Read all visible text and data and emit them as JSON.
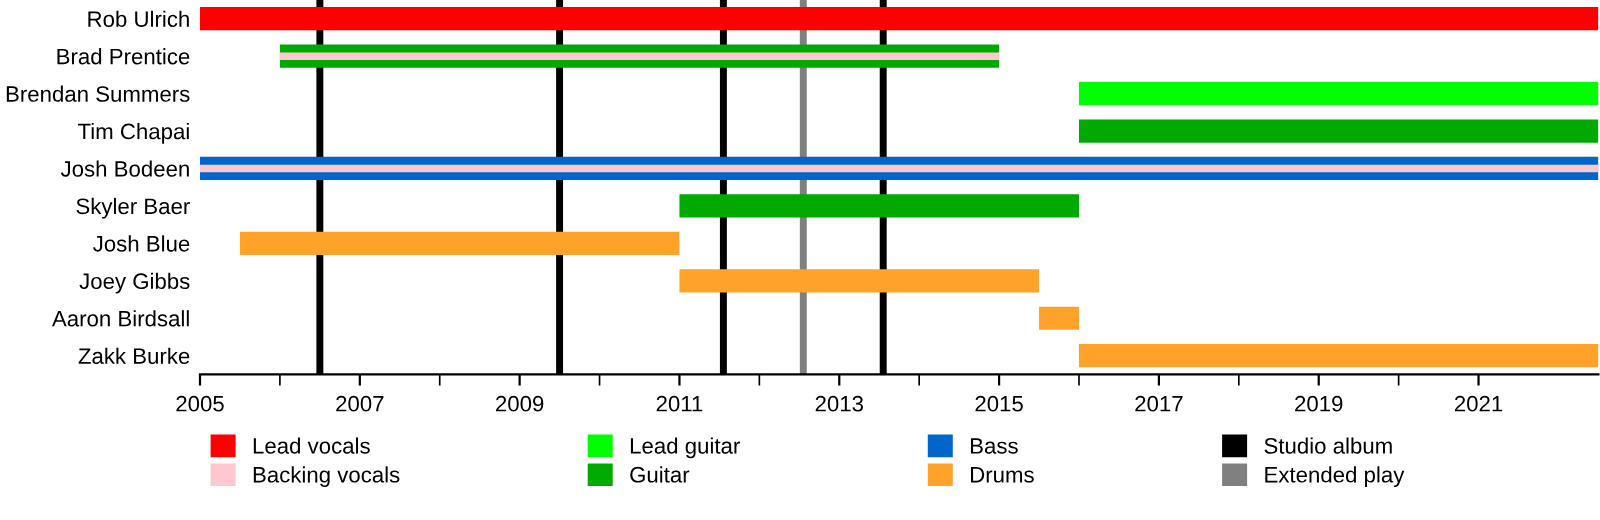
{
  "chart_data": {
    "type": "bar",
    "orientation": "horizontal",
    "categories": [
      "Rob Ulrich",
      "Brad Prentice",
      "Brendan Summers",
      "Tim Chapai",
      "Josh Bodeen",
      "Skyler Baer",
      "Josh Blue",
      "Joey Gibbs",
      "Aaron Birdsall",
      "Zakk Burke"
    ],
    "series": [
      {
        "name": "Lead vocals",
        "color": "#ff0000",
        "values": [
          17.5,
          null,
          null,
          null,
          null,
          null,
          null,
          null,
          null,
          null
        ],
        "base": [
          2005,
          null,
          null,
          null,
          null,
          null,
          null,
          null,
          null,
          null
        ]
      },
      {
        "name": "Backing vocals",
        "color": "#ffc8d0",
        "values": [
          null,
          9,
          null,
          null,
          17.5,
          null,
          null,
          null,
          null,
          null
        ],
        "base": [
          null,
          2006,
          null,
          null,
          2005,
          null,
          null,
          null,
          null,
          null
        ]
      },
      {
        "name": "Lead guitar",
        "color": "#00ff00",
        "values": [
          null,
          null,
          6.5,
          null,
          null,
          null,
          null,
          null,
          null,
          null
        ],
        "base": [
          null,
          null,
          2016,
          null,
          null,
          null,
          null,
          null,
          null,
          null
        ]
      },
      {
        "name": "Guitar",
        "color": "#00aa00",
        "values": [
          null,
          9,
          null,
          6.5,
          null,
          5,
          null,
          null,
          null,
          null
        ],
        "base": [
          null,
          2006,
          null,
          2016,
          null,
          2011,
          null,
          null,
          null,
          null
        ]
      },
      {
        "name": "Bass",
        "color": "#0066cc",
        "values": [
          null,
          null,
          null,
          null,
          17.5,
          null,
          null,
          null,
          null,
          null
        ],
        "base": [
          null,
          null,
          null,
          null,
          2005,
          null,
          null,
          null,
          null,
          null
        ]
      },
      {
        "name": "Drums",
        "color": "#ffa229",
        "values": [
          null,
          null,
          null,
          null,
          null,
          null,
          5.5,
          4.5,
          0.5,
          6.5
        ],
        "base": [
          null,
          null,
          null,
          null,
          null,
          null,
          2005.5,
          2011,
          2015.5,
          2016
        ]
      }
    ],
    "ref_lines": [
      {
        "axis": "x",
        "value": 2006.5,
        "label": "Studio album",
        "color": "#000000"
      },
      {
        "axis": "x",
        "value": 2009.5,
        "label": null,
        "color": "#000000"
      },
      {
        "axis": "x",
        "value": 2011.55,
        "label": null,
        "color": "#000000"
      },
      {
        "axis": "x",
        "value": 2013.55,
        "label": null,
        "color": "#000000"
      },
      {
        "axis": "x",
        "value": 2012.55,
        "label": "Extended play",
        "color": "#808080"
      }
    ],
    "xlim": [
      2005,
      2022.5
    ],
    "xticks": [
      2005,
      2007,
      2009,
      2011,
      2013,
      2015,
      2017,
      2019,
      2021
    ],
    "grid": false,
    "legend": "bottom"
  }
}
